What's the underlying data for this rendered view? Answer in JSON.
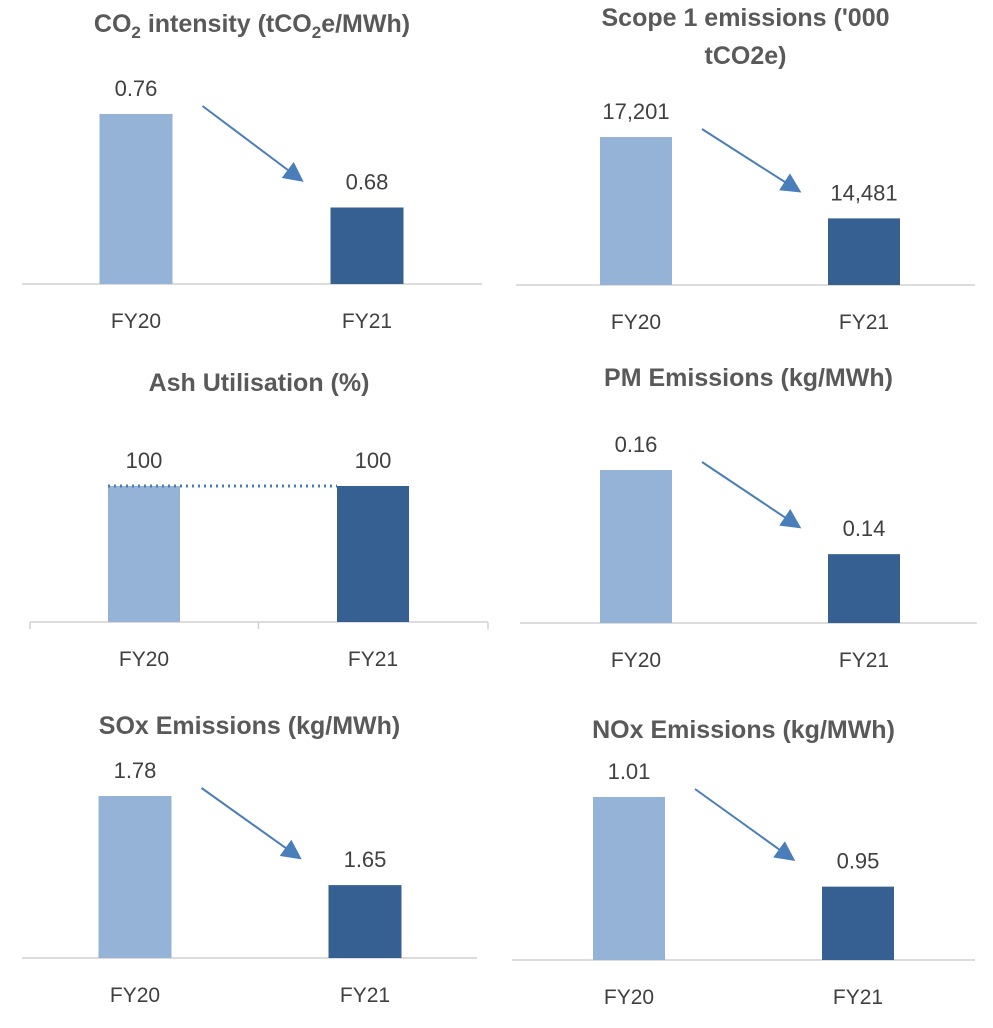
{
  "colors": {
    "fy20": "#95b3d7",
    "fy21": "#366092",
    "arrow": "#4a7ebb",
    "title": "#595959",
    "text": "#404040",
    "axis": "#d0d0d0"
  },
  "chart_data": [
    {
      "type": "bar",
      "title": [
        "CO",
        "2",
        " intensity (tCO",
        "2",
        "e/MWh)"
      ],
      "categories": [
        "FY20",
        "FY21"
      ],
      "values": [
        0.76,
        0.68
      ],
      "labels": [
        "0.76",
        "0.68"
      ],
      "trend": "arrow-down"
    },
    {
      "type": "bar",
      "title": [
        "Scope 1 emissions ('000",
        "tCO2e)"
      ],
      "categories": [
        "FY20",
        "FY21"
      ],
      "values": [
        17201,
        14481
      ],
      "labels": [
        "17,201",
        "14,481"
      ],
      "trend": "arrow-down"
    },
    {
      "type": "bar",
      "title": [
        "Ash Utilisation (%)"
      ],
      "categories": [
        "FY20",
        "FY21"
      ],
      "values": [
        100,
        100
      ],
      "labels": [
        "100",
        "100"
      ],
      "trend": "dotted-flat"
    },
    {
      "type": "bar",
      "title": [
        "PM Emissions (kg/MWh)"
      ],
      "categories": [
        "FY20",
        "FY21"
      ],
      "values": [
        0.16,
        0.14
      ],
      "labels": [
        "0.16",
        "0.14"
      ],
      "trend": "arrow-down"
    },
    {
      "type": "bar",
      "title": [
        "SOx  Emissions (kg/MWh)"
      ],
      "categories": [
        "FY20",
        "FY21"
      ],
      "values": [
        1.78,
        1.65
      ],
      "labels": [
        "1.78",
        "1.65"
      ],
      "trend": "arrow-down"
    },
    {
      "type": "bar",
      "title": [
        "NOx  Emissions (kg/MWh)"
      ],
      "categories": [
        "FY20",
        "FY21"
      ],
      "values": [
        1.01,
        0.95
      ],
      "labels": [
        "1.01",
        "0.95"
      ],
      "trend": "arrow-down"
    }
  ]
}
